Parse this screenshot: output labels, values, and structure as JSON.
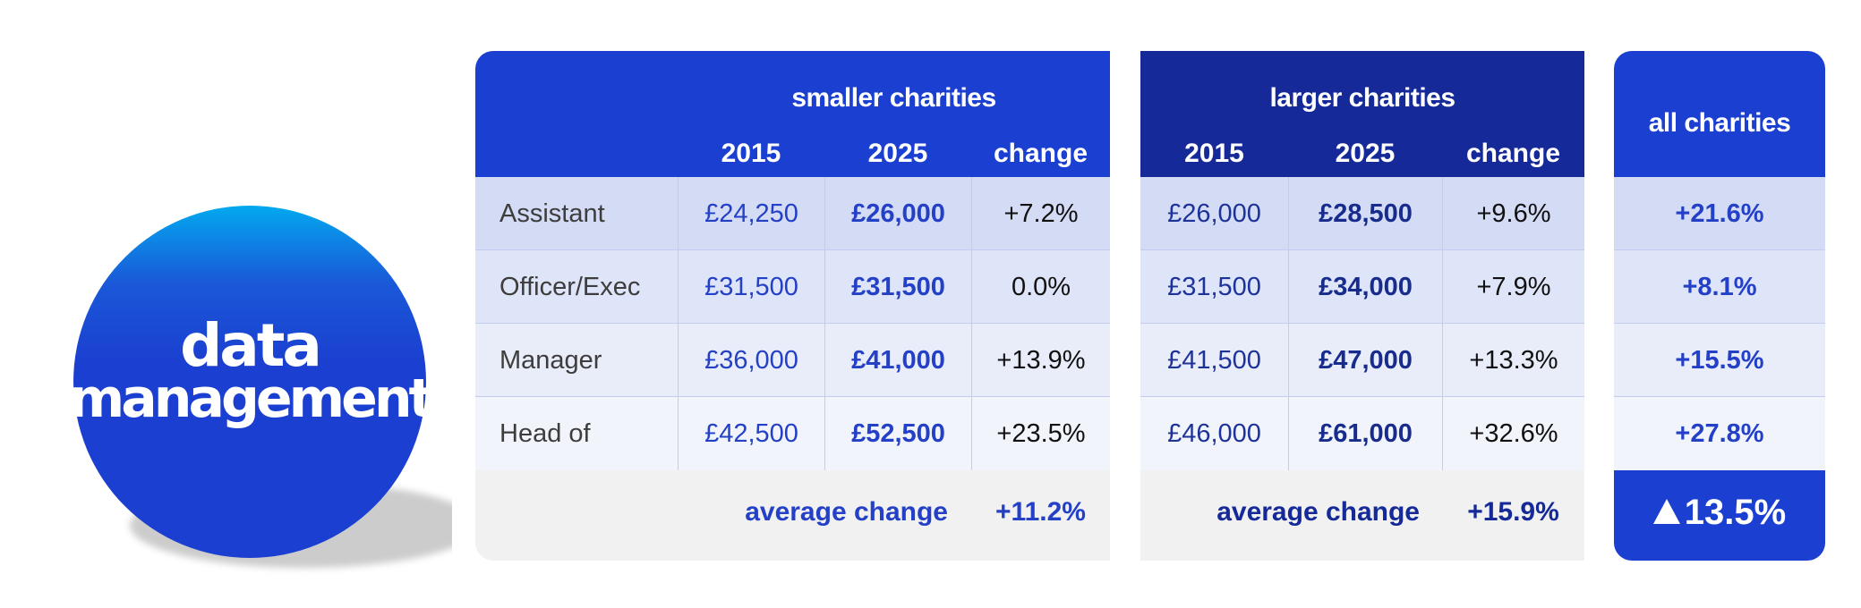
{
  "badge": {
    "line1": "data",
    "line2": "management",
    "color": "#1b3fd0"
  },
  "colors": {
    "smaller_header": "#1b3fd0",
    "larger_header": "#152a98",
    "all_header": "#1b3fd0"
  },
  "smaller": {
    "title": "smaller charities",
    "headers": [
      "2015",
      "2025",
      "change"
    ],
    "rows": [
      {
        "role": "Assistant",
        "y2015": "£24,250",
        "y2025": "£26,000",
        "change": "+7.2%"
      },
      {
        "role": "Officer/Exec",
        "y2015": "£31,500",
        "y2025": "£31,500",
        "change": "0.0%"
      },
      {
        "role": "Manager",
        "y2015": "£36,000",
        "y2025": "£41,000",
        "change": "+13.9%"
      },
      {
        "role": "Head of",
        "y2015": "£42,500",
        "y2025": "£52,500",
        "change": "+23.5%"
      }
    ],
    "footer_label": "average change",
    "footer_value": "+11.2%"
  },
  "larger": {
    "title": "larger charities",
    "headers": [
      "2015",
      "2025",
      "change"
    ],
    "rows": [
      {
        "y2015": "£26,000",
        "y2025": "£28,500",
        "change": "+9.6%"
      },
      {
        "y2015": "£31,500",
        "y2025": "£34,000",
        "change": "+7.9%"
      },
      {
        "y2015": "£41,500",
        "y2025": "£47,000",
        "change": "+13.3%"
      },
      {
        "y2015": "£46,000",
        "y2025": "£61,000",
        "change": "+32.6%"
      }
    ],
    "footer_label": "average change",
    "footer_value": "+15.9%"
  },
  "all": {
    "title": "all charities",
    "rows": [
      "+21.6%",
      "+8.1%",
      "+15.5%",
      "+27.8%"
    ],
    "total": "13.5%",
    "total_icon": "up-triangle-icon"
  }
}
